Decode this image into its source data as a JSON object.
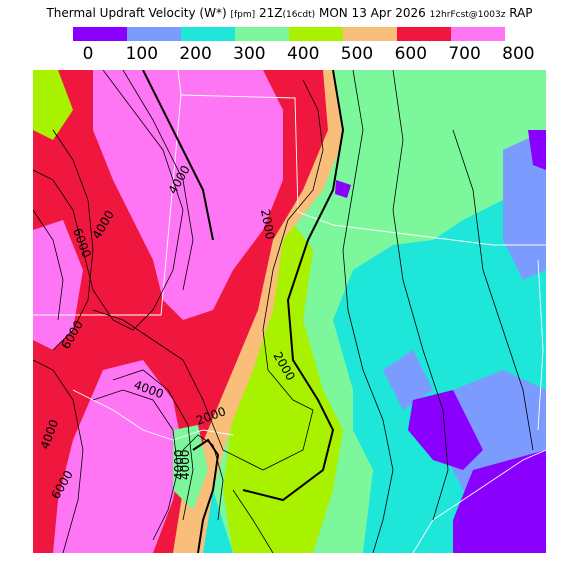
{
  "header": {
    "title_main": "Thermal Updraft Velocity (W*)",
    "title_units": "[fpm]",
    "title_time": "21Z",
    "title_local": "(16cdt)",
    "title_date": "MON 13 Apr 2026",
    "title_fcst": "12hrFcst@1003z",
    "title_model": "RAP"
  },
  "legend": {
    "colors": [
      "#8a00ff",
      "#7b9bff",
      "#1ee6d9",
      "#7cf79b",
      "#a8f200",
      "#f9bf7a",
      "#f0173f",
      "#ff76f5"
    ],
    "ticks": [
      "0",
      "100",
      "200",
      "300",
      "400",
      "500",
      "600",
      "700",
      "800"
    ]
  },
  "map": {
    "contour_labels": [
      "4000",
      "6000",
      "4000",
      "2000",
      "2000",
      "2000",
      "4000",
      "4000",
      "4000",
      "4000",
      "6000",
      "6000"
    ]
  }
}
